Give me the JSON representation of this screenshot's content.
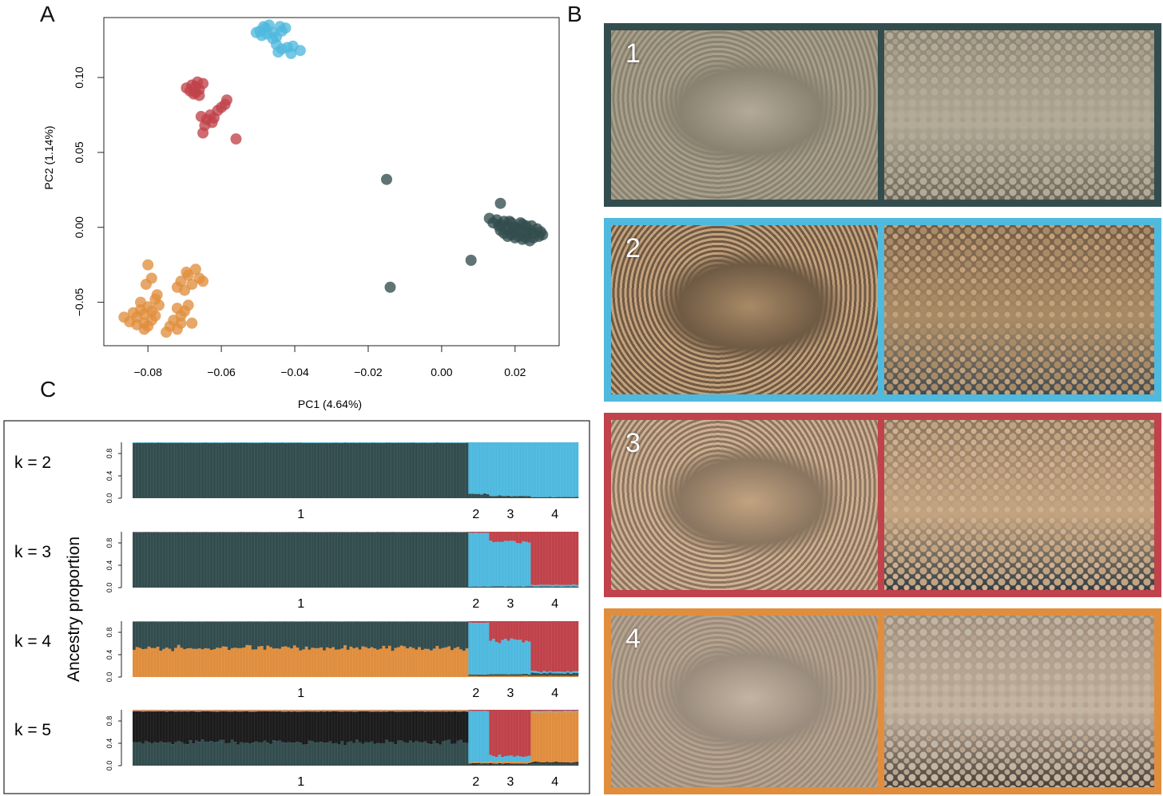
{
  "panels": {
    "a": "A",
    "b": "B",
    "c": "C"
  },
  "colors": {
    "cluster1": "#334d4e",
    "cluster2": "#4fb9de",
    "cluster3": "#c0424a",
    "cluster4": "#e08e3e",
    "cluster5": "#1c1c1c"
  },
  "chart_data": [
    {
      "type": "scatter",
      "panel": "A",
      "xlabel": "PC1  (4.64%)",
      "ylabel": "PC2  (1.14%)",
      "xlim": [
        -0.092,
        0.032
      ],
      "ylim": [
        -0.079,
        0.14
      ],
      "xticks": [
        -0.08,
        -0.06,
        -0.04,
        -0.02,
        0.0,
        0.02
      ],
      "xtick_labels": [
        "−0.08",
        "−0.06",
        "−0.04",
        "−0.02",
        "0.00",
        "0.02"
      ],
      "yticks": [
        -0.05,
        0.0,
        0.05,
        0.1
      ],
      "ytick_labels": [
        "−0.05",
        "0.00",
        "0.05",
        "0.10"
      ],
      "grid": false,
      "series": [
        {
          "color_key": "cluster2",
          "points": [
            [
              -0.0505,
              0.13
            ],
            [
              -0.049,
              0.128
            ],
            [
              -0.048,
              0.133
            ],
            [
              -0.047,
              0.135
            ],
            [
              -0.046,
              0.13
            ],
            [
              -0.045,
              0.127
            ],
            [
              -0.044,
              0.134
            ],
            [
              -0.0435,
              0.131
            ],
            [
              -0.0425,
              0.133
            ],
            [
              -0.0475,
              0.129
            ],
            [
              -0.046,
              0.126
            ],
            [
              -0.045,
              0.122
            ],
            [
              -0.0435,
              0.119
            ],
            [
              -0.042,
              0.12
            ],
            [
              -0.041,
              0.116
            ],
            [
              -0.0405,
              0.121
            ],
            [
              -0.0385,
              0.118
            ],
            [
              -0.0445,
              0.117
            ],
            [
              -0.0495,
              0.131
            ],
            [
              -0.0485,
              0.134
            ]
          ]
        },
        {
          "color_key": "cluster3",
          "points": [
            [
              -0.0695,
              0.093
            ],
            [
              -0.0685,
              0.091
            ],
            [
              -0.068,
              0.095
            ],
            [
              -0.067,
              0.094
            ],
            [
              -0.066,
              0.092
            ],
            [
              -0.0675,
              0.089
            ],
            [
              -0.066,
              0.088
            ],
            [
              -0.065,
              0.096
            ],
            [
              -0.0665,
              0.097
            ],
            [
              -0.067,
              0.09
            ],
            [
              -0.0655,
              0.074
            ],
            [
              -0.064,
              0.072
            ],
            [
              -0.063,
              0.075
            ],
            [
              -0.062,
              0.073
            ],
            [
              -0.061,
              0.078
            ],
            [
              -0.06,
              0.08
            ],
            [
              -0.059,
              0.082
            ],
            [
              -0.0585,
              0.085
            ],
            [
              -0.0625,
              0.07
            ],
            [
              -0.0645,
              0.068
            ],
            [
              -0.065,
              0.063
            ],
            [
              -0.056,
              0.059
            ]
          ]
        },
        {
          "color_key": "cluster1",
          "points": [
            [
              -0.015,
              0.032
            ],
            [
              -0.014,
              -0.04
            ],
            [
              0.008,
              -0.022
            ],
            [
              0.016,
              0.016
            ],
            [
              0.013,
              0.006
            ],
            [
              0.014,
              0.003
            ],
            [
              0.015,
              0.005
            ],
            [
              0.016,
              0.002
            ],
            [
              0.017,
              0.004
            ],
            [
              0.018,
              0.001
            ],
            [
              0.019,
              0.003
            ],
            [
              0.02,
              0.0
            ],
            [
              0.021,
              -0.001
            ],
            [
              0.022,
              0.002
            ],
            [
              0.023,
              -0.003
            ],
            [
              0.024,
              -0.002
            ],
            [
              0.025,
              -0.004
            ],
            [
              0.026,
              -0.001
            ],
            [
              0.027,
              -0.003
            ],
            [
              0.0275,
              -0.005
            ],
            [
              0.016,
              -0.002
            ],
            [
              0.017,
              -0.004
            ],
            [
              0.018,
              -0.006
            ],
            [
              0.019,
              -0.005
            ],
            [
              0.02,
              -0.007
            ],
            [
              0.021,
              -0.006
            ],
            [
              0.022,
              -0.008
            ],
            [
              0.023,
              -0.007
            ],
            [
              0.024,
              -0.009
            ],
            [
              0.025,
              -0.007
            ],
            [
              0.0155,
              0.001
            ],
            [
              0.0185,
              0.004
            ],
            [
              0.0215,
              0.003
            ],
            [
              0.0245,
              0.001
            ],
            [
              0.0265,
              -0.006
            ],
            [
              0.0225,
              -0.004
            ],
            [
              0.0195,
              -0.002
            ],
            [
              0.0175,
              -0.001
            ],
            [
              0.02,
              -0.003
            ],
            [
              0.023,
              0.001
            ]
          ]
        },
        {
          "color_key": "cluster4",
          "points": [
            [
              -0.082,
              -0.055
            ],
            [
              -0.081,
              -0.058
            ],
            [
              -0.08,
              -0.053
            ],
            [
              -0.083,
              -0.06
            ],
            [
              -0.079,
              -0.062
            ],
            [
              -0.08,
              -0.066
            ],
            [
              -0.081,
              -0.064
            ],
            [
              -0.082,
              -0.05
            ],
            [
              -0.079,
              -0.056
            ],
            [
              -0.078,
              -0.059
            ],
            [
              -0.084,
              -0.057
            ],
            [
              -0.085,
              -0.063
            ],
            [
              -0.083,
              -0.065
            ],
            [
              -0.0865,
              -0.06
            ],
            [
              -0.078,
              -0.048
            ],
            [
              -0.077,
              -0.052
            ],
            [
              -0.0775,
              -0.045
            ],
            [
              -0.08,
              -0.025
            ],
            [
              -0.079,
              -0.034
            ],
            [
              -0.0805,
              -0.038
            ],
            [
              -0.081,
              -0.068
            ],
            [
              -0.072,
              -0.04
            ],
            [
              -0.071,
              -0.036
            ],
            [
              -0.07,
              -0.042
            ],
            [
              -0.069,
              -0.032
            ],
            [
              -0.068,
              -0.038
            ],
            [
              -0.067,
              -0.028
            ],
            [
              -0.066,
              -0.034
            ],
            [
              -0.065,
              -0.036
            ],
            [
              -0.0695,
              -0.03
            ],
            [
              -0.072,
              -0.054
            ],
            [
              -0.071,
              -0.059
            ],
            [
              -0.07,
              -0.056
            ],
            [
              -0.073,
              -0.062
            ],
            [
              -0.074,
              -0.066
            ],
            [
              -0.075,
              -0.07
            ],
            [
              -0.072,
              -0.068
            ],
            [
              -0.071,
              -0.064
            ],
            [
              -0.068,
              -0.064
            ],
            [
              -0.069,
              -0.052
            ]
          ]
        }
      ]
    },
    {
      "type": "bar",
      "panel": "C",
      "stacked": true,
      "ylabel": "Ancestry proportion",
      "yticks": [
        0.0,
        0.4,
        0.8
      ],
      "ytick_labels": [
        "0.0",
        "0.4",
        "0.8"
      ],
      "ylim": [
        0,
        1
      ],
      "group_labels": [
        "1",
        "2",
        "3",
        "4"
      ],
      "group_fractions": [
        0.755,
        0.045,
        0.095,
        0.105
      ],
      "rows": [
        {
          "label": "k = 2",
          "k": 2,
          "groups": [
            {
              "color_keys": [
                "cluster1",
                "cluster2"
              ],
              "mean": [
                0.99,
                0.01
              ]
            },
            {
              "color_keys": [
                "cluster1",
                "cluster2"
              ],
              "mean": [
                0.08,
                0.92
              ]
            },
            {
              "color_keys": [
                "cluster1",
                "cluster2"
              ],
              "mean": [
                0.04,
                0.96
              ]
            },
            {
              "color_keys": [
                "cluster1",
                "cluster2"
              ],
              "mean": [
                0.02,
                0.98
              ]
            }
          ]
        },
        {
          "label": "k = 3",
          "k": 3,
          "groups": [
            {
              "color_keys": [
                "cluster1",
                "cluster2",
                "cluster3"
              ],
              "mean": [
                0.99,
                0.005,
                0.005
              ]
            },
            {
              "color_keys": [
                "cluster1",
                "cluster2",
                "cluster3"
              ],
              "mean": [
                0.02,
                0.96,
                0.02
              ]
            },
            {
              "color_keys": [
                "cluster1",
                "cluster2",
                "cluster3"
              ],
              "mean": [
                0.02,
                0.8,
                0.18
              ]
            },
            {
              "color_keys": [
                "cluster1",
                "cluster2",
                "cluster3"
              ],
              "mean": [
                0.02,
                0.03,
                0.95
              ]
            }
          ]
        },
        {
          "label": "k = 4",
          "k": 4,
          "groups": [
            {
              "color_keys": [
                "cluster4",
                "cluster1",
                "cluster2",
                "cluster3"
              ],
              "mean": [
                0.52,
                0.47,
                0.005,
                0.005
              ]
            },
            {
              "color_keys": [
                "cluster4",
                "cluster1",
                "cluster2",
                "cluster3"
              ],
              "mean": [
                0.02,
                0.03,
                0.92,
                0.03
              ]
            },
            {
              "color_keys": [
                "cluster4",
                "cluster1",
                "cluster2",
                "cluster3"
              ],
              "mean": [
                0.02,
                0.03,
                0.6,
                0.35
              ]
            },
            {
              "color_keys": [
                "cluster4",
                "cluster1",
                "cluster2",
                "cluster3"
              ],
              "mean": [
                0.02,
                0.05,
                0.03,
                0.9
              ]
            }
          ]
        },
        {
          "label": "k = 5",
          "k": 5,
          "groups": [
            {
              "color_keys": [
                "cluster1",
                "cluster5",
                "cluster4",
                "cluster2",
                "cluster3"
              ],
              "mean": [
                0.42,
                0.55,
                0.02,
                0.005,
                0.005
              ]
            },
            {
              "color_keys": [
                "cluster1",
                "cluster5",
                "cluster4",
                "cluster2",
                "cluster3"
              ],
              "mean": [
                0.02,
                0.02,
                0.02,
                0.92,
                0.02
              ]
            },
            {
              "color_keys": [
                "cluster1",
                "cluster5",
                "cluster4",
                "cluster2",
                "cluster3"
              ],
              "mean": [
                0.02,
                0.02,
                0.03,
                0.1,
                0.83
              ]
            },
            {
              "color_keys": [
                "cluster1",
                "cluster5",
                "cluster4",
                "cluster2",
                "cluster3"
              ],
              "mean": [
                0.04,
                0.02,
                0.9,
                0.02,
                0.02
              ]
            }
          ]
        }
      ]
    }
  ],
  "photos": [
    {
      "number": "1",
      "border_key": "cluster1"
    },
    {
      "number": "2",
      "border_key": "cluster2"
    },
    {
      "number": "3",
      "border_key": "cluster3"
    },
    {
      "number": "4",
      "border_key": "cluster4"
    }
  ]
}
